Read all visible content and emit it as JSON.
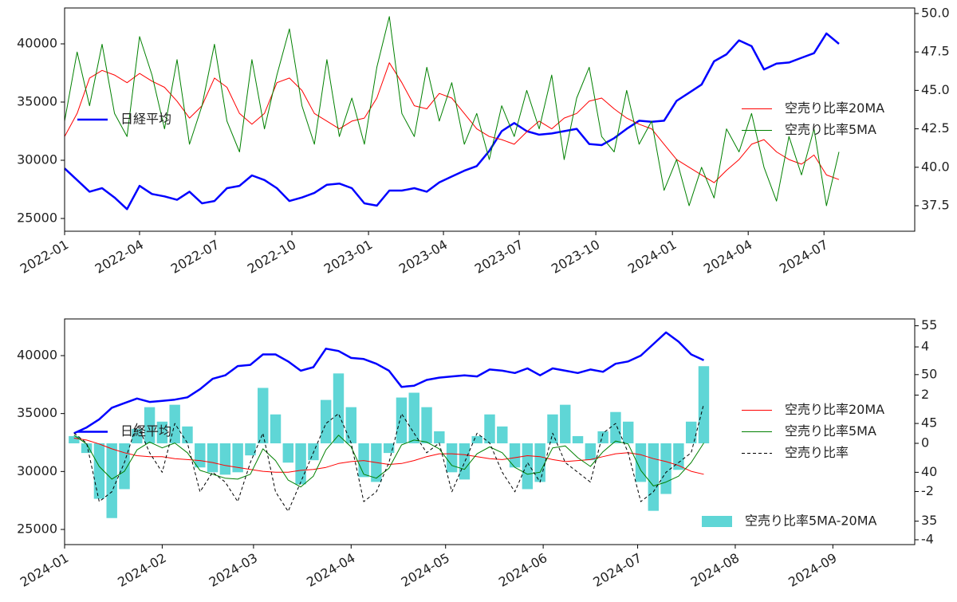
{
  "chart_data": [
    {
      "type": "line",
      "x": [
        0,
        15,
        30,
        45,
        60,
        75,
        90,
        105,
        120,
        135,
        150,
        165,
        180,
        195,
        210,
        225,
        240,
        255,
        270,
        285,
        300,
        315,
        330,
        345,
        360,
        375,
        390,
        405,
        420,
        435,
        450,
        465,
        480,
        495,
        510,
        525,
        540,
        555,
        570,
        585,
        600,
        615,
        630,
        645,
        660,
        675,
        690,
        705,
        720,
        735,
        750,
        765,
        780,
        795,
        810,
        825,
        840,
        855,
        870,
        885,
        900,
        915,
        930
      ],
      "xlim": [
        0,
        1021
      ],
      "xticks": [
        {
          "value": 0,
          "label": "2022-01"
        },
        {
          "value": 90,
          "label": "2022-04"
        },
        {
          "value": 181,
          "label": "2022-07"
        },
        {
          "value": 273,
          "label": "2022-10"
        },
        {
          "value": 365,
          "label": "2023-01"
        },
        {
          "value": 455,
          "label": "2023-04"
        },
        {
          "value": 546,
          "label": "2023-07"
        },
        {
          "value": 638,
          "label": "2023-10"
        },
        {
          "value": 730,
          "label": "2024-01"
        },
        {
          "value": 821,
          "label": "2024-04"
        },
        {
          "value": 912,
          "label": "2024-07"
        }
      ],
      "ylim": [
        23904,
        43082
      ],
      "yticks": [
        25000,
        30000,
        35000,
        40000
      ],
      "y2lim": [
        35.84,
        50.36
      ],
      "y2ticks": [
        37.5,
        {
          "value": 40,
          "label": "40.0"
        },
        42.5,
        {
          "value": 45,
          "label": "45.0"
        },
        47.5,
        {
          "value": 50,
          "label": "50.0"
        }
      ],
      "legends": {
        "y": "center left",
        "y2": "center right"
      },
      "series": [
        {
          "name": "日経平均",
          "color": "#0000ff",
          "axis": "y",
          "values": [
            29300,
            28300,
            27300,
            27600,
            26800,
            25800,
            27800,
            27100,
            26900,
            26600,
            27300,
            26300,
            26500,
            27600,
            27800,
            28700,
            28300,
            27600,
            26500,
            26800,
            27200,
            27900,
            28000,
            27600,
            26300,
            26100,
            27400,
            27400,
            27600,
            27300,
            28100,
            28600,
            29100,
            29500,
            30800,
            32500,
            33200,
            32500,
            32200,
            32300,
            32500,
            32700,
            31400,
            31300,
            31900,
            32700,
            33400,
            33300,
            33400,
            35100,
            35800,
            36500,
            38500,
            39100,
            40300,
            39800,
            37800,
            38300,
            38400,
            38800,
            39200,
            40900,
            40000
          ]
        },
        {
          "name": "空売り比率20MA",
          "color": "#ff0000",
          "axis": "y2",
          "values": [
            42.0,
            43.5,
            45.8,
            46.3,
            46.0,
            45.5,
            46.1,
            45.6,
            45.2,
            44.3,
            43.2,
            44.0,
            45.8,
            45.2,
            43.5,
            42.8,
            43.5,
            45.5,
            45.8,
            45.0,
            43.5,
            43.0,
            42.5,
            43.0,
            43.2,
            44.5,
            46.8,
            45.5,
            44.0,
            43.8,
            44.8,
            44.5,
            43.5,
            42.5,
            42.0,
            41.8,
            41.5,
            42.3,
            43.0,
            42.5,
            43.2,
            43.5,
            44.3,
            44.5,
            43.8,
            43.2,
            42.8,
            42.5,
            41.5,
            40.5,
            40.0,
            39.5,
            39.0,
            39.8,
            40.5,
            41.5,
            41.8,
            41.0,
            40.5,
            40.2,
            40.8,
            39.5,
            39.2
          ]
        },
        {
          "name": "空売り比率5MA",
          "color": "#008000",
          "axis": "y2",
          "values": [
            43.0,
            47.5,
            44.0,
            48.0,
            43.5,
            42.0,
            48.5,
            46.0,
            42.5,
            47.0,
            41.5,
            44.0,
            48.0,
            43.0,
            41.0,
            47.0,
            42.5,
            46.0,
            49.0,
            44.0,
            41.5,
            47.0,
            42.0,
            44.5,
            41.5,
            46.5,
            49.8,
            43.5,
            42.0,
            46.5,
            43.0,
            45.5,
            41.5,
            43.5,
            40.5,
            44.0,
            42.0,
            45.0,
            42.5,
            46.0,
            40.5,
            44.5,
            46.5,
            42.0,
            41.0,
            45.0,
            41.5,
            43.0,
            38.5,
            40.5,
            37.5,
            40.0,
            38.0,
            42.5,
            41.0,
            43.5,
            40.0,
            37.8,
            42.0,
            39.5,
            42.5,
            37.5,
            41.0
          ]
        }
      ]
    },
    {
      "type": "line",
      "x": [
        3,
        7,
        11,
        15,
        19,
        23,
        27,
        31,
        35,
        39,
        43,
        47,
        51,
        55,
        59,
        63,
        67,
        71,
        75,
        79,
        83,
        87,
        91,
        95,
        99,
        103,
        107,
        111,
        115,
        119,
        123,
        127,
        131,
        135,
        139,
        143,
        147,
        151,
        155,
        159,
        163,
        167,
        171,
        175,
        179,
        183,
        187,
        191,
        195,
        199,
        203
      ],
      "xlim": [
        0,
        270
      ],
      "xticks": [
        {
          "value": 0,
          "label": "2024-01"
        },
        {
          "value": 31,
          "label": "2024-02"
        },
        {
          "value": 60,
          "label": "2024-03"
        },
        {
          "value": 91,
          "label": "2024-04"
        },
        {
          "value": 121,
          "label": "2024-05"
        },
        {
          "value": 152,
          "label": "2024-06"
        },
        {
          "value": 182,
          "label": "2024-07"
        },
        {
          "value": 213,
          "label": "2024-08"
        },
        {
          "value": 244,
          "label": "2024-09"
        }
      ],
      "ylim": [
        23693,
        43164
      ],
      "yticks": [
        25000,
        30000,
        35000,
        40000
      ],
      "y2lim": [
        32.6,
        55.7
      ],
      "y2ticks": [
        35,
        40,
        45,
        50,
        55
      ],
      "y3lim": [
        -4.2,
        5.16
      ],
      "y3ticks": [
        -4,
        -2,
        0,
        2,
        4
      ],
      "legends": {
        "y": "center left",
        "y2": "center right",
        "y3": "lower right"
      },
      "series": [
        {
          "name": "日経平均",
          "color": "#0000ff",
          "axis": "y",
          "values": [
            33300,
            33800,
            34500,
            35500,
            35900,
            36300,
            36000,
            36100,
            36200,
            36400,
            37100,
            38000,
            38300,
            39100,
            39200,
            40100,
            40100,
            39500,
            38700,
            39000,
            40600,
            40400,
            39800,
            39700,
            39300,
            38700,
            37300,
            37400,
            37900,
            38100,
            38200,
            38300,
            38200,
            38800,
            38700,
            38500,
            38900,
            38300,
            38900,
            38700,
            38500,
            38800,
            38600,
            39300,
            39500,
            40000,
            41000,
            42000,
            41200,
            40100,
            39600
          ]
        },
        {
          "name": "空売り比率20MA",
          "color": "#ff0000",
          "axis": "y2",
          "values": [
            43.5,
            43.3,
            42.9,
            42.4,
            42.0,
            41.7,
            41.6,
            41.6,
            41.4,
            41.3,
            41.2,
            41.0,
            40.7,
            40.5,
            40.3,
            40.1,
            40.0,
            40.0,
            40.2,
            40.3,
            40.5,
            40.9,
            41.1,
            41.2,
            41.0,
            40.8,
            40.9,
            41.2,
            41.6,
            41.9,
            41.9,
            41.8,
            41.6,
            41.4,
            41.3,
            41.5,
            41.7,
            41.6,
            41.3,
            41.1,
            41.2,
            41.3,
            41.6,
            41.9,
            42.0,
            41.8,
            41.4,
            41.1,
            40.7,
            40.1,
            39.8
          ]
        },
        {
          "name": "空売り比率5MA",
          "color": "#008000",
          "axis": "y2",
          "values": [
            43.8,
            42.9,
            40.6,
            39.3,
            40.1,
            42.3,
            43.1,
            42.5,
            43.0,
            42.0,
            40.2,
            39.8,
            39.4,
            39.3,
            39.8,
            42.4,
            41.2,
            39.2,
            38.5,
            39.6,
            42.3,
            43.8,
            42.6,
            39.8,
            39.4,
            40.4,
            42.8,
            43.3,
            43.1,
            42.4,
            40.7,
            40.3,
            41.9,
            42.6,
            42.0,
            40.5,
            39.8,
            40.0,
            42.5,
            42.7,
            41.5,
            40.6,
            42.1,
            43.2,
            42.9,
            40.2,
            38.6,
            39.0,
            39.6,
            41.0,
            43.0
          ]
        },
        {
          "name": "空売り比率",
          "color": "#000000",
          "axis": "y2",
          "linestyle": "dashed",
          "values": [
            44,
            43,
            37,
            38,
            41,
            45,
            42,
            40,
            45,
            43,
            38,
            40,
            39,
            37,
            41,
            44,
            38,
            36,
            39,
            42,
            45,
            46,
            43,
            37,
            38,
            41,
            46,
            44,
            42,
            43,
            38,
            41,
            44,
            43,
            40,
            38,
            41,
            39,
            44,
            41,
            40,
            39,
            44,
            45,
            42,
            37,
            38,
            40,
            41,
            42,
            47
          ]
        },
        {
          "name": "空売り比率5MA-20MA",
          "color": "#5fd6d6",
          "axis": "y3",
          "type": "bar",
          "values": [
            0.3,
            -0.4,
            -2.3,
            -3.1,
            -1.9,
            0.6,
            1.5,
            0.9,
            1.6,
            0.7,
            -1.0,
            -1.2,
            -1.3,
            -1.2,
            -0.5,
            2.3,
            1.2,
            -0.8,
            -1.7,
            -0.7,
            1.8,
            2.9,
            1.5,
            -1.4,
            -1.6,
            -0.4,
            1.9,
            2.1,
            1.5,
            0.5,
            -1.2,
            -1.5,
            0.3,
            1.2,
            0.7,
            -1.0,
            -1.9,
            -1.6,
            1.2,
            1.6,
            0.3,
            -0.7,
            0.5,
            1.3,
            0.9,
            -1.6,
            -2.8,
            -2.1,
            -1.1,
            0.9,
            3.2
          ]
        }
      ]
    }
  ]
}
